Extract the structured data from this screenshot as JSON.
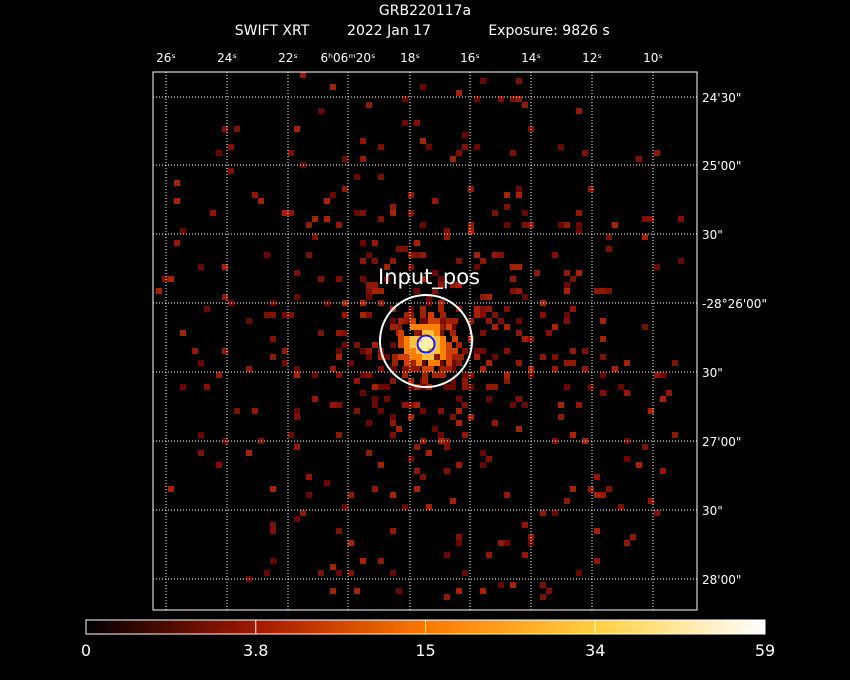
{
  "header": {
    "title": "GRB220117a",
    "instrument": "SWIFT XRT",
    "date": "2022 Jan 17",
    "exposure": "Exposure: 9826 s"
  },
  "ra_labels": [
    "26ˢ",
    "24ˢ",
    "22ˢ",
    "6ʰ06ᵐ20ˢ",
    "18ˢ",
    "16ˢ",
    "14ˢ",
    "12ˢ",
    "10ˢ"
  ],
  "dec_labels": [
    "24'30\"",
    "25'00\"",
    "30\"",
    "-28°26'00\"",
    "30\"",
    "27'00\"",
    "30\"",
    "28'00\""
  ],
  "region_label": "Input_pos",
  "colorbar_labels": [
    "0",
    "3.8",
    "15",
    "34",
    "59"
  ]
}
